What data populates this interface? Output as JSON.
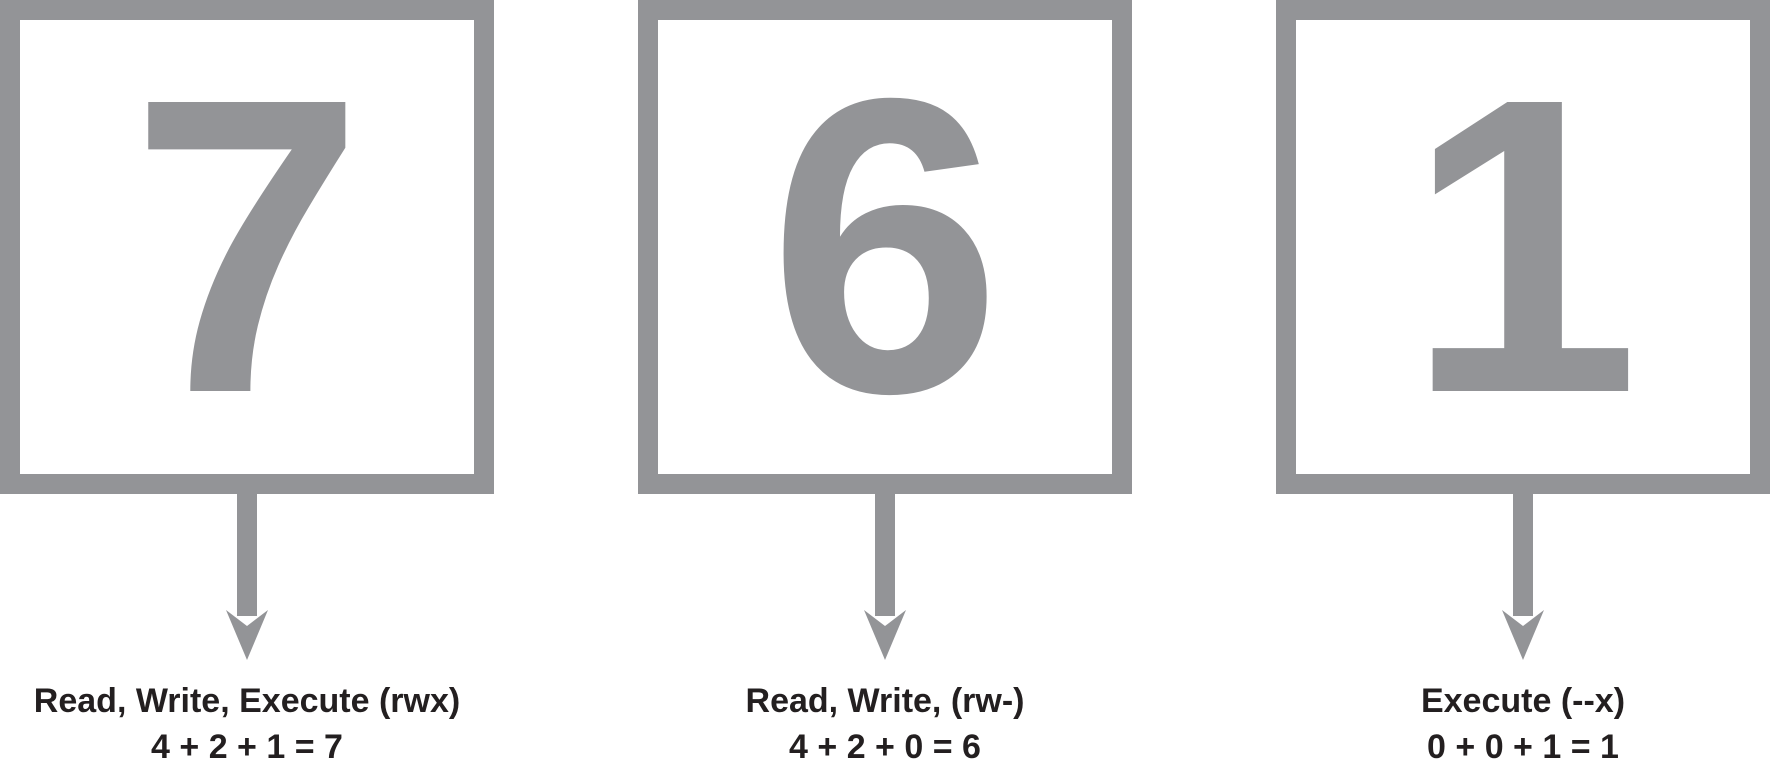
{
  "panels": [
    {
      "digit": "7",
      "caption": "Read, Write, Execute (rwx)",
      "sum": "4 + 2 + 1 = 7"
    },
    {
      "digit": "6",
      "caption": "Read, Write, (rw-)",
      "sum": "4 + 2 + 0 = 6"
    },
    {
      "digit": "1",
      "caption": "Execute (--x)",
      "sum": "0 + 0 + 1 = 1"
    }
  ],
  "colors": {
    "box": "#939497",
    "text": "#231f20"
  }
}
